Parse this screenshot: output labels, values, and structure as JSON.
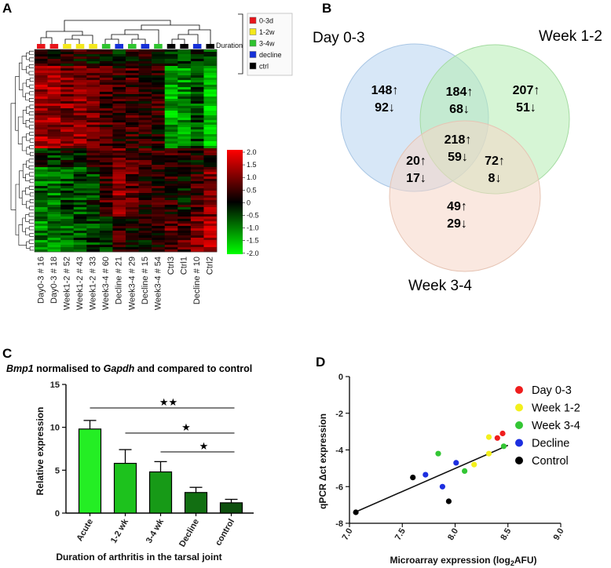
{
  "panels": {
    "a": "A",
    "b": "B",
    "c": "C",
    "d": "D"
  },
  "heatmap": {
    "duration_label": "Duration",
    "legend": [
      {
        "label": "0-3d",
        "color": "#e8151b"
      },
      {
        "label": "1-2w",
        "color": "#f4e81c"
      },
      {
        "label": "3-4w",
        "color": "#2fc42f"
      },
      {
        "label": "decline",
        "color": "#1530d8"
      },
      {
        "label": "ctrl",
        "color": "#000000"
      }
    ],
    "samples": [
      {
        "label": "Day0-3 # 16",
        "group": "0-3d"
      },
      {
        "label": "Day0-3 # 18",
        "group": "0-3d"
      },
      {
        "label": "Week1-2 # 52",
        "group": "1-2w"
      },
      {
        "label": "Week1-2 # 43",
        "group": "1-2w"
      },
      {
        "label": "Week1-2 # 33",
        "group": "1-2w"
      },
      {
        "label": "Week3-4 # 60",
        "group": "3-4w"
      },
      {
        "label": "Decline # 21",
        "group": "decline"
      },
      {
        "label": "Week3-4 # 29",
        "group": "3-4w"
      },
      {
        "label": "Decline # 15",
        "group": "decline"
      },
      {
        "label": "Week3-4 # 54",
        "group": "3-4w"
      },
      {
        "label": "Ctrl3",
        "group": "ctrl"
      },
      {
        "label": "Ctrl1",
        "group": "ctrl"
      },
      {
        "label": "Decline # 10",
        "group": "decline"
      },
      {
        "label": "Ctrl2",
        "group": "ctrl"
      }
    ],
    "scale_ticks": [
      "2.0",
      "1.5",
      "1.0",
      "0.5",
      "0",
      "-0.5",
      "-1.0",
      "-1.5",
      "-2.0"
    ]
  },
  "venn": {
    "sets": [
      "Day 0-3",
      "Week 1-2",
      "Week 3-4"
    ],
    "regions": [
      {
        "region": "day_only",
        "up": "148",
        "down": "92"
      },
      {
        "region": "week12_only",
        "up": "207",
        "down": "51"
      },
      {
        "region": "week34_only",
        "up": "49",
        "down": "29"
      },
      {
        "region": "day_week12",
        "up": "184",
        "down": "68"
      },
      {
        "region": "day_week34",
        "up": "20",
        "down": "17"
      },
      {
        "region": "week12_week34",
        "up": "72",
        "down": "8"
      },
      {
        "region": "all",
        "up": "218",
        "down": "59"
      }
    ]
  },
  "bar_panel": {
    "title_gene": "Bmp1",
    "title_mid": " normalised to ",
    "title_ref": "Gapdh",
    "title_end": " and compared to control",
    "ylabel": "Relative expression",
    "xlabel": "Duration of arthritis in the tarsal joint",
    "sig_marks": [
      "★★",
      "★",
      "★"
    ]
  },
  "scatter_panel": {
    "xlabel_main": "Microarray expression (log",
    "xlabel_sub": "2",
    "xlabel_end": "AFU)",
    "ylabel": "qPCR Δct expression",
    "legend": [
      {
        "label": "Day 0-3",
        "color": "#ef1d1d"
      },
      {
        "label": "Week 1-2",
        "color": "#f3f01c"
      },
      {
        "label": "Week 3-4",
        "color": "#33c634"
      },
      {
        "label": "Decline",
        "color": "#1d2fe0"
      },
      {
        "label": "Control",
        "color": "#000000"
      }
    ]
  },
  "chart_data": [
    {
      "type": "bar",
      "title": "Bmp1 normalised to Gapdh and compared to control",
      "xlabel": "Duration of arthritis in the tarsal joint",
      "ylabel": "Relative expression",
      "categories": [
        "Acute",
        "1-2 wk",
        "3-4 wk",
        "Decline",
        "control"
      ],
      "values": [
        9.8,
        5.8,
        4.8,
        2.4,
        1.2
      ],
      "errors": [
        1.0,
        1.6,
        1.2,
        0.6,
        0.4
      ],
      "colors": [
        "#24ee24",
        "#1dc21d",
        "#179a17",
        "#126f12",
        "#0e500e"
      ],
      "ylim": [
        0,
        15
      ],
      "yticks": [
        0,
        5,
        10,
        15
      ],
      "significance": [
        {
          "from": "Acute",
          "to": "control",
          "mark": "★★"
        },
        {
          "from": "1-2 wk",
          "to": "control",
          "mark": "★"
        },
        {
          "from": "3-4 wk",
          "to": "control",
          "mark": "★"
        }
      ]
    },
    {
      "type": "scatter",
      "title": "",
      "xlabel": "Microarray expression (log2AFU)",
      "ylabel": "qPCR Δct expression",
      "xlim": [
        7.0,
        9.0
      ],
      "ylim": [
        -8,
        0
      ],
      "xticks": [
        "7.0",
        "7.5",
        "8.0",
        "8.5",
        "9.0"
      ],
      "yticks": [
        "0",
        "-2",
        "-4",
        "-6",
        "-8"
      ],
      "series": [
        {
          "name": "Day 0-3",
          "color": "#ef1d1d",
          "points": [
            [
              8.45,
              -3.1
            ],
            [
              8.4,
              -3.35
            ]
          ]
        },
        {
          "name": "Week 1-2",
          "color": "#f3f01c",
          "points": [
            [
              8.32,
              -3.3
            ],
            [
              8.32,
              -4.2
            ],
            [
              8.18,
              -4.8
            ]
          ]
        },
        {
          "name": "Week 3-4",
          "color": "#33c634",
          "points": [
            [
              7.84,
              -4.2
            ],
            [
              8.46,
              -3.8
            ],
            [
              8.09,
              -5.15
            ]
          ]
        },
        {
          "name": "Decline",
          "color": "#1d2fe0",
          "points": [
            [
              7.72,
              -5.35
            ],
            [
              8.01,
              -4.7
            ],
            [
              7.88,
              -6.0
            ]
          ]
        },
        {
          "name": "Control",
          "color": "#000000",
          "points": [
            [
              7.06,
              -7.4
            ],
            [
              7.6,
              -5.5
            ],
            [
              7.94,
              -6.8
            ]
          ]
        }
      ],
      "fit_line": {
        "x": [
          7.05,
          8.5
        ],
        "y": [
          -7.4,
          -3.75
        ]
      }
    }
  ]
}
